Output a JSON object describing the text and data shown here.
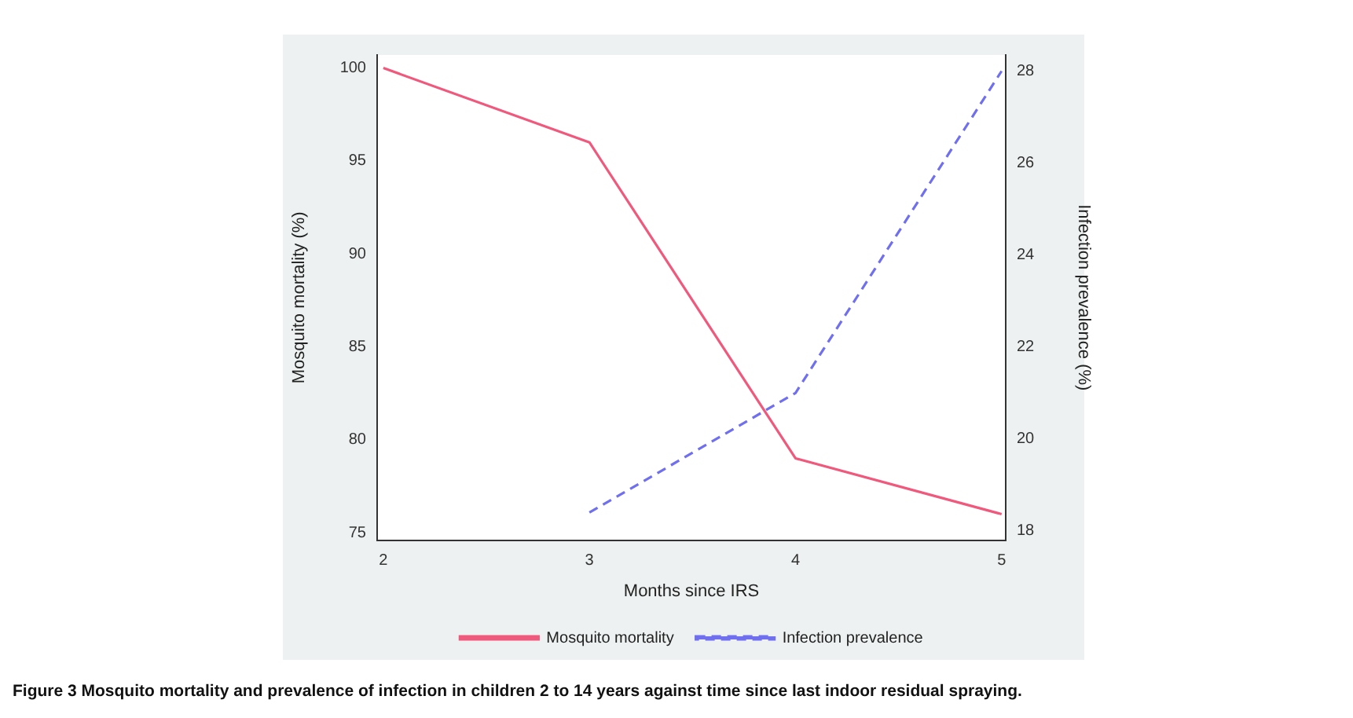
{
  "chart_data": {
    "type": "line",
    "xlabel": "Months since IRS",
    "ylabel": "Mosquito mortality (%)",
    "y2label": "Infection prevalence (%)",
    "x": [
      2,
      3,
      4,
      5
    ],
    "series": [
      {
        "name": "Mosquito mortality",
        "color": "#f0587c",
        "values": [
          100,
          96,
          79,
          76
        ],
        "line_style": "solid"
      },
      {
        "name": "Infection prevalence",
        "color": "#6f6ff0",
        "values": [
          null,
          18.4,
          21,
          28
        ],
        "axis": "y2",
        "line_style": "dashed"
      }
    ],
    "xlim": [
      1.97,
      5.02
    ],
    "xticks": [
      2,
      3,
      4,
      5
    ],
    "ylim": [
      74.6,
      100.7
    ],
    "yticks": [
      75,
      80,
      85,
      90,
      95,
      100
    ],
    "y2lim": [
      17.8,
      28.35
    ],
    "y2ticks": [
      18,
      20,
      22,
      24,
      26,
      28
    ],
    "grid": false,
    "legend": "bottom",
    "marker": "none",
    "annotations": [
      "Figure 3 Mosquito mortality and prevalence of infection in children 2 to 14 years against time since last indoor residual spraying."
    ]
  }
}
